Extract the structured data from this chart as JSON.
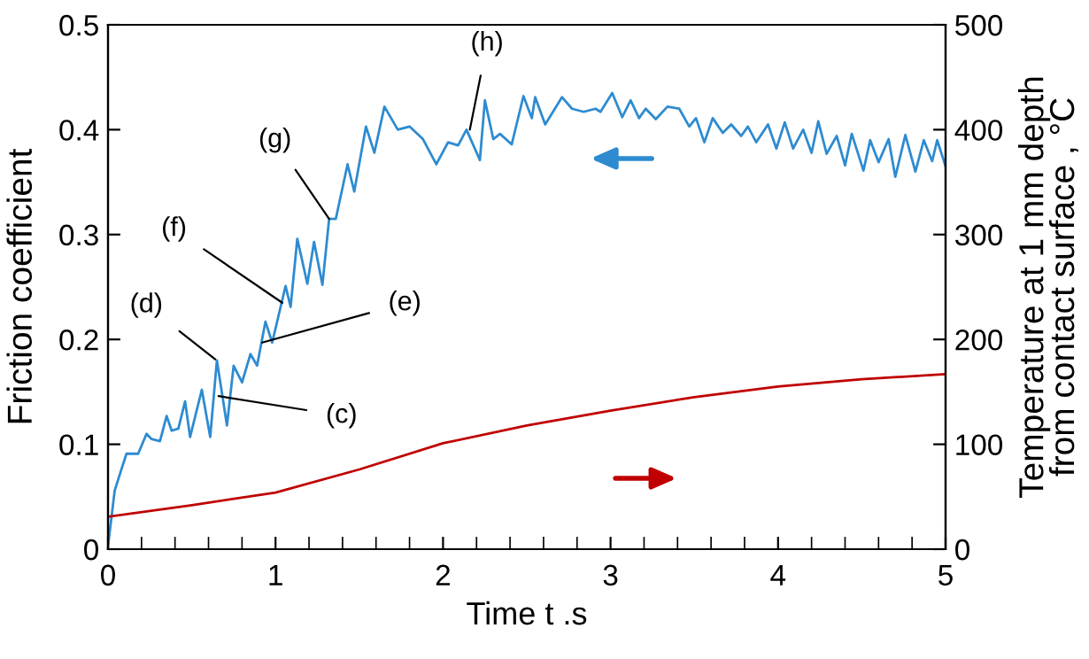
{
  "chart_data": {
    "type": "line",
    "xlabel": "Time t .s",
    "ylabel": "Friction coefficient",
    "y2label": "Temperature at 1 mm depth\nfrom contact surface , °C",
    "xlim": [
      0,
      5
    ],
    "xticks": [
      0,
      1,
      2,
      3,
      4,
      5
    ],
    "ylim": [
      0,
      0.5
    ],
    "yticks": [
      0,
      0.1,
      0.2,
      0.3,
      0.4,
      0.5
    ],
    "y2lim": [
      0,
      500
    ],
    "y2ticks": [
      0,
      100,
      200,
      300,
      400,
      500
    ],
    "grid": false,
    "marker": "none",
    "line_style": "solid",
    "series": [
      {
        "color": "#2e8bd0",
        "x": [
          0,
          0.04,
          0.11,
          0.18,
          0.23,
          0.26,
          0.31,
          0.35,
          0.38,
          0.42,
          0.46,
          0.49,
          0.56,
          0.61,
          0.65,
          0.71,
          0.75,
          0.8,
          0.85,
          0.89,
          0.94,
          0.98,
          1.06,
          1.09,
          1.13,
          1.19,
          1.23,
          1.28,
          1.32,
          1.36,
          1.43,
          1.47,
          1.54,
          1.59,
          1.65,
          1.73,
          1.8,
          1.88,
          1.96,
          2.03,
          2.09,
          2.14,
          2.22,
          2.25,
          2.3,
          2.34,
          2.41,
          2.48,
          2.53,
          2.55,
          2.61,
          2.71,
          2.77,
          2.84,
          2.91,
          2.94,
          3.01,
          3.07,
          3.12,
          3.17,
          3.21,
          3.27,
          3.34,
          3.41,
          3.47,
          3.51,
          3.56,
          3.61,
          3.67,
          3.72,
          3.78,
          3.82,
          3.87,
          3.94,
          3.99,
          4.04,
          4.09,
          4.15,
          4.2,
          4.24,
          4.29,
          4.35,
          4.4,
          4.44,
          4.51,
          4.55,
          4.6,
          4.66,
          4.7,
          4.76,
          4.82,
          4.87,
          4.92,
          4.95,
          5
        ],
        "values": [
          0.003,
          0.056,
          0.091,
          0.091,
          0.11,
          0.105,
          0.103,
          0.127,
          0.113,
          0.115,
          0.141,
          0.107,
          0.152,
          0.107,
          0.18,
          0.118,
          0.175,
          0.159,
          0.186,
          0.175,
          0.217,
          0.197,
          0.251,
          0.231,
          0.296,
          0.253,
          0.293,
          0.252,
          0.315,
          0.315,
          0.367,
          0.341,
          0.403,
          0.378,
          0.422,
          0.4,
          0.403,
          0.391,
          0.367,
          0.388,
          0.385,
          0.4,
          0.371,
          0.428,
          0.391,
          0.396,
          0.386,
          0.432,
          0.411,
          0.431,
          0.405,
          0.431,
          0.42,
          0.417,
          0.42,
          0.417,
          0.435,
          0.412,
          0.428,
          0.411,
          0.42,
          0.41,
          0.422,
          0.42,
          0.403,
          0.411,
          0.388,
          0.411,
          0.397,
          0.405,
          0.394,
          0.403,
          0.388,
          0.405,
          0.382,
          0.407,
          0.382,
          0.4,
          0.378,
          0.408,
          0.377,
          0.394,
          0.366,
          0.396,
          0.361,
          0.39,
          0.369,
          0.391,
          0.355,
          0.395,
          0.36,
          0.39,
          0.37,
          0.39,
          0.365
        ]
      },
      {
        "color": "#c00000",
        "axis": "y2",
        "x": [
          0,
          0.5,
          1,
          1.5,
          2,
          2.5,
          3,
          3.5,
          4,
          4.5,
          5
        ],
        "values": [
          31,
          42,
          54,
          76,
          101,
          118,
          132,
          145,
          155,
          162,
          167
        ]
      }
    ],
    "annotations": [
      {
        "text": "(c)",
        "x": 0.66,
        "y": 0.146
      },
      {
        "text": "(d)",
        "x": 0.64,
        "y": 0.181
      },
      {
        "text": "(e)",
        "x": 0.92,
        "y": 0.197
      },
      {
        "text": "(f)",
        "x": 1.04,
        "y": 0.235
      },
      {
        "text": "(g)",
        "x": 1.32,
        "y": 0.315
      },
      {
        "text": "(h)",
        "x": 2.16,
        "y": 0.4
      }
    ]
  }
}
